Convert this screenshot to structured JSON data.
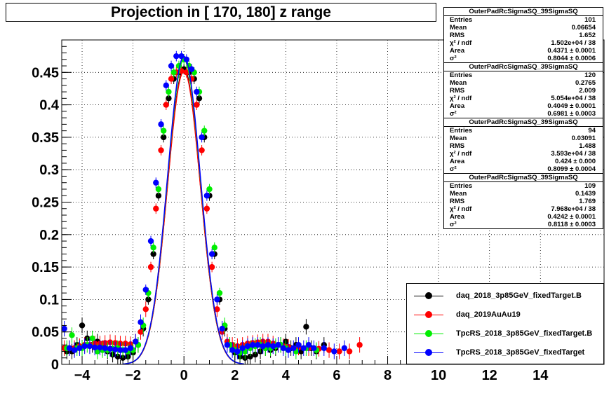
{
  "chart_data": {
    "type": "scatter",
    "title": "Projection in [ 170, 180] z range",
    "xlim": [
      -4.8,
      16.5
    ],
    "ylim": [
      0,
      0.5
    ],
    "grid": true,
    "x_ticks": [
      -4,
      -2,
      0,
      2,
      4,
      6,
      8,
      10,
      12,
      14
    ],
    "x_tick_labels": [
      "−4",
      "−2",
      "0",
      "2",
      "4",
      "6",
      "8",
      "10",
      "12",
      "14"
    ],
    "y_ticks": [
      0,
      0.05,
      0.1,
      0.15,
      0.2,
      0.25,
      0.3,
      0.35,
      0.4,
      0.45
    ],
    "y_tick_labels": [
      "0",
      "0.05",
      "0.1",
      "0.15",
      "0.2",
      "0.25",
      "0.3",
      "0.35",
      "0.4",
      "0.45"
    ],
    "legend_position": "bottom-right",
    "series": [
      {
        "name": "daq_2018_3p85GeV_fixedTarget.B",
        "color": "#000000",
        "x": [
          -4.6,
          -4.4,
          -4.2,
          -4.0,
          -3.8,
          -3.6,
          -3.4,
          -3.2,
          -3.0,
          -2.8,
          -2.6,
          -2.4,
          -2.2,
          -2.0,
          -1.8,
          -1.6,
          -1.4,
          -1.2,
          -1.0,
          -0.8,
          -0.6,
          -0.4,
          -0.2,
          0.0,
          0.2,
          0.4,
          0.6,
          0.8,
          1.0,
          1.2,
          1.4,
          1.6,
          1.8,
          2.0,
          2.2,
          2.4,
          2.6,
          2.8,
          3.0,
          3.2,
          3.4,
          3.6,
          3.8,
          4.0,
          4.2,
          4.4,
          4.6,
          4.8,
          5.0,
          5.2,
          5.5
        ],
        "y": [
          0.02,
          0.02,
          0.03,
          0.06,
          0.04,
          0.03,
          0.035,
          0.025,
          0.02,
          0.015,
          0.012,
          0.01,
          0.012,
          0.018,
          0.03,
          0.055,
          0.1,
          0.17,
          0.26,
          0.35,
          0.41,
          0.44,
          0.45,
          0.455,
          0.45,
          0.44,
          0.41,
          0.35,
          0.26,
          0.17,
          0.1,
          0.055,
          0.03,
          0.018,
          0.012,
          0.01,
          0.012,
          0.015,
          0.02,
          0.025,
          0.022,
          0.025,
          0.03,
          0.035,
          0.025,
          0.03,
          0.02,
          0.058,
          0.025,
          0.02,
          0.03
        ]
      },
      {
        "name": "daq_2019AuAu19",
        "color": "#ff0000",
        "x": [
          -4.7,
          -4.5,
          -4.3,
          -4.1,
          -3.9,
          -3.7,
          -3.5,
          -3.3,
          -3.1,
          -2.9,
          -2.7,
          -2.5,
          -2.3,
          -2.1,
          -1.9,
          -1.7,
          -1.5,
          -1.3,
          -1.1,
          -0.9,
          -0.7,
          -0.5,
          -0.3,
          -0.1,
          0.1,
          0.3,
          0.5,
          0.7,
          0.9,
          1.1,
          1.3,
          1.5,
          1.7,
          1.9,
          2.1,
          2.3,
          2.5,
          2.7,
          2.9,
          3.1,
          3.3,
          3.5,
          3.7,
          3.9,
          4.1,
          4.5,
          4.9,
          5.3,
          5.7,
          6.1,
          6.5,
          6.9
        ],
        "y": [
          0.025,
          0.025,
          0.025,
          0.028,
          0.03,
          0.03,
          0.032,
          0.032,
          0.033,
          0.034,
          0.033,
          0.032,
          0.032,
          0.031,
          0.035,
          0.05,
          0.085,
          0.15,
          0.24,
          0.33,
          0.4,
          0.44,
          0.45,
          0.452,
          0.45,
          0.44,
          0.4,
          0.33,
          0.24,
          0.15,
          0.085,
          0.05,
          0.035,
          0.03,
          0.028,
          0.03,
          0.032,
          0.033,
          0.034,
          0.035,
          0.035,
          0.032,
          0.03,
          0.028,
          0.027,
          0.026,
          0.025,
          0.024,
          0.022,
          0.02,
          0.02,
          0.03
        ]
      },
      {
        "name": "TpcRS_2018_3p85GeV_fixedTarget.B",
        "color": "#00ee00",
        "x": [
          -4.6,
          -4.4,
          -4.2,
          -4.0,
          -3.8,
          -3.6,
          -3.4,
          -3.2,
          -3.0,
          -2.8,
          -2.6,
          -2.4,
          -2.2,
          -2.0,
          -1.8,
          -1.6,
          -1.4,
          -1.2,
          -1.0,
          -0.8,
          -0.6,
          -0.4,
          -0.2,
          0.0,
          0.2,
          0.4,
          0.6,
          0.8,
          1.0,
          1.2,
          1.4,
          1.6,
          1.8,
          2.0,
          2.2,
          2.4,
          2.6,
          2.8,
          3.0,
          3.2,
          3.4,
          3.6,
          3.8,
          4.0,
          4.4,
          4.8,
          5.2
        ],
        "y": [
          0.025,
          0.045,
          0.025,
          0.025,
          0.03,
          0.04,
          0.02,
          0.022,
          0.022,
          0.024,
          0.025,
          0.022,
          0.02,
          0.022,
          0.03,
          0.06,
          0.11,
          0.18,
          0.27,
          0.36,
          0.42,
          0.45,
          0.46,
          0.47,
          0.46,
          0.45,
          0.42,
          0.36,
          0.27,
          0.18,
          0.11,
          0.06,
          0.03,
          0.022,
          0.018,
          0.02,
          0.025,
          0.028,
          0.03,
          0.025,
          0.025,
          0.028,
          0.03,
          0.025,
          0.02,
          0.025,
          0.022
        ]
      },
      {
        "name": "TpcRS_2018_3p85GeV_fixedTarget",
        "color": "#0000ff",
        "x": [
          -4.7,
          -4.5,
          -4.3,
          -4.1,
          -3.9,
          -3.7,
          -3.5,
          -3.3,
          -3.1,
          -2.9,
          -2.7,
          -2.5,
          -2.3,
          -2.1,
          -1.9,
          -1.7,
          -1.5,
          -1.3,
          -1.1,
          -0.9,
          -0.7,
          -0.5,
          -0.3,
          -0.1,
          0.1,
          0.3,
          0.5,
          0.7,
          0.9,
          1.1,
          1.3,
          1.5,
          1.7,
          1.9,
          2.1,
          2.3,
          2.5,
          2.7,
          2.9,
          3.1,
          3.3,
          3.5,
          3.7,
          3.9,
          4.1,
          4.3,
          4.5,
          4.7,
          4.9,
          5.1,
          5.5,
          5.9,
          6.3
        ],
        "y": [
          0.055,
          0.025,
          0.022,
          0.025,
          0.028,
          0.028,
          0.026,
          0.026,
          0.025,
          0.024,
          0.023,
          0.022,
          0.022,
          0.025,
          0.035,
          0.065,
          0.115,
          0.19,
          0.28,
          0.37,
          0.43,
          0.46,
          0.475,
          0.475,
          0.47,
          0.455,
          0.42,
          0.35,
          0.26,
          0.17,
          0.1,
          0.055,
          0.03,
          0.022,
          0.02,
          0.025,
          0.028,
          0.03,
          0.03,
          0.028,
          0.03,
          0.028,
          0.03,
          0.025,
          0.022,
          0.025,
          0.03,
          0.025,
          0.03,
          0.025,
          0.025,
          0.02,
          0.025
        ]
      }
    ]
  },
  "stats": [
    {
      "title": "OuterPadRcSigmaSQ_39SigmaSQ",
      "rows": [
        [
          "Entries",
          "101"
        ],
        [
          "Mean",
          "0.06654"
        ],
        [
          "RMS",
          "1.652"
        ],
        [
          "χ² / ndf",
          "1.502e+04 / 38"
        ],
        [
          "Area",
          "0.4371 ± 0.0001"
        ],
        [
          "σ²",
          "0.8044 ± 0.0006"
        ]
      ]
    },
    {
      "title": "OuterPadRcSigmaSQ_39SigmaSQ",
      "rows": [
        [
          "Entries",
          "120"
        ],
        [
          "Mean",
          "0.2765"
        ],
        [
          "RMS",
          "2.009"
        ],
        [
          "χ² / ndf",
          "5.054e+04 / 38"
        ],
        [
          "Area",
          "0.4049 ± 0.0001"
        ],
        [
          "σ²",
          "0.6981 ± 0.0003"
        ]
      ]
    },
    {
      "title": "OuterPadRcSigmaSQ_39SigmaSQ",
      "rows": [
        [
          "Entries",
          "94"
        ],
        [
          "Mean",
          "0.03091"
        ],
        [
          "RMS",
          "1.488"
        ],
        [
          "χ² / ndf",
          "3.593e+04 / 38"
        ],
        [
          "Area",
          "0.424 ± 0.000"
        ],
        [
          "σ²",
          "0.8099 ± 0.0004"
        ]
      ]
    },
    {
      "title": "OuterPadRcSigmaSQ_39SigmaSQ",
      "rows": [
        [
          "Entries",
          "109"
        ],
        [
          "Mean",
          "0.1439"
        ],
        [
          "RMS",
          "1.769"
        ],
        [
          "χ² / ndf",
          "7.968e+04 / 38"
        ],
        [
          "Area",
          "0.4242 ± 0.0001"
        ],
        [
          "σ²",
          "0.8118 ± 0.0003"
        ]
      ]
    }
  ]
}
